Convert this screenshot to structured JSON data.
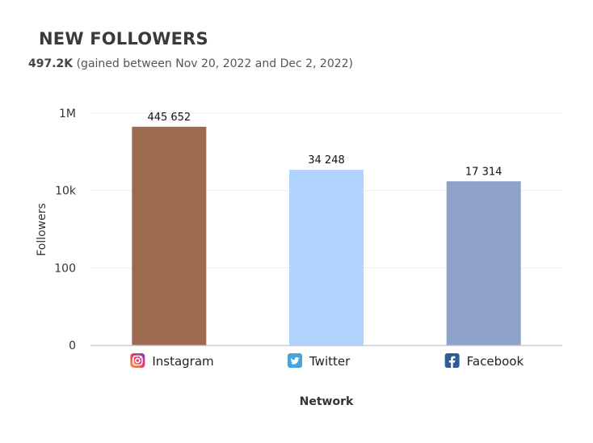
{
  "header": {
    "title": "NEW FOLLOWERS",
    "total": "497.2K",
    "period": "(gained between Nov 20, 2022 and Dec 2, 2022)"
  },
  "chart_data": {
    "type": "bar",
    "scale": "log",
    "categories": [
      "Instagram",
      "Twitter",
      "Facebook"
    ],
    "category_icons": [
      "instagram-icon",
      "twitter-icon",
      "facebook-icon"
    ],
    "values": [
      445652,
      34248,
      17314
    ],
    "value_labels": [
      "445 652",
      "34 248",
      "17 314"
    ],
    "colors": [
      "#9c6a4f",
      "#b0d3ff",
      "#8ea2c7"
    ],
    "ylabel": "Followers",
    "xlabel": "Network",
    "y_ticks": [
      1,
      100,
      10000,
      1000000
    ],
    "y_tick_labels": [
      "0",
      "100",
      "10k",
      "1M"
    ],
    "ylim": [
      1,
      1000000
    ],
    "grid": true,
    "legend": "none"
  }
}
